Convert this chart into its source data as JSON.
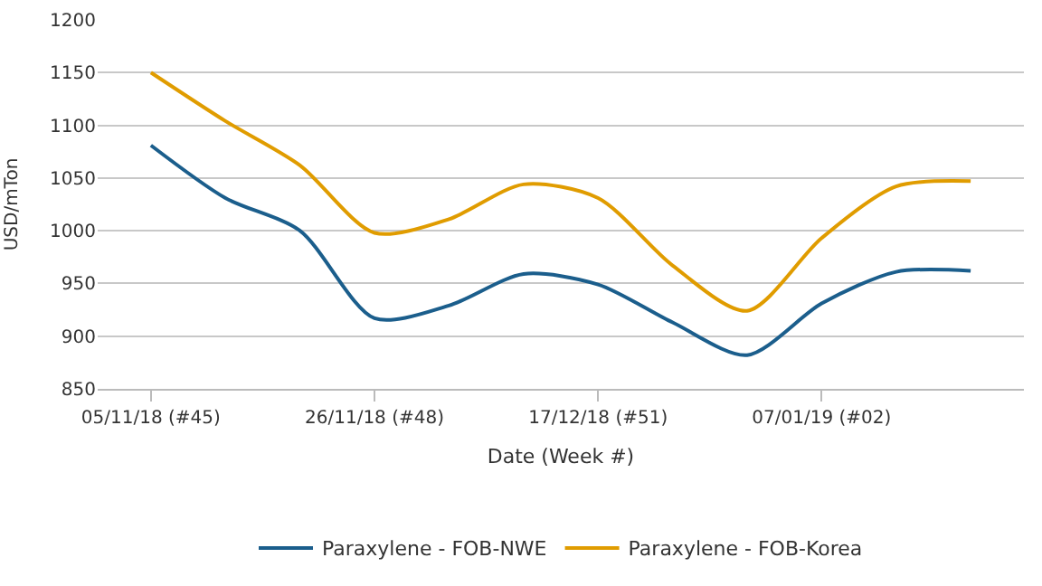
{
  "chart_data": {
    "type": "line",
    "xlabel": "Date (Week #)",
    "ylabel": "USD/mTon",
    "x": [
      "2018-11-05",
      "2018-11-12",
      "2018-11-19",
      "2018-11-26",
      "2018-12-03",
      "2018-12-10",
      "2018-12-17",
      "2018-12-24",
      "2018-12-31",
      "2019-01-07",
      "2019-01-14",
      "2019-01-21"
    ],
    "series": [
      {
        "name": "Paraxylene - FOB-NWE",
        "color": "#1b5e8c",
        "values": [
          1081,
          1031,
          1000,
          917,
          929,
          959,
          949,
          913,
          882,
          931,
          961,
          962
        ]
      },
      {
        "name": "Paraxylene - FOB-Korea",
        "color": "#e09c00",
        "values": [
          1150,
          1104,
          1062,
          998,
          1011,
          1044,
          1031,
          967,
          924,
          993,
          1042,
          1047
        ]
      }
    ],
    "xlim": [
      "2018-10-31",
      "2019-01-26"
    ],
    "xticks": [
      {
        "value": "2018-11-05",
        "label": "05/11/18 (#45)"
      },
      {
        "value": "2018-11-26",
        "label": "26/11/18 (#48)"
      },
      {
        "value": "2018-12-17",
        "label": "17/12/18 (#51)"
      },
      {
        "value": "2019-01-07",
        "label": "07/01/19 (#02)"
      }
    ],
    "ylim": [
      850,
      1200
    ],
    "yticks": [
      850,
      900,
      950,
      1000,
      1050,
      1100,
      1150,
      1200
    ],
    "grid": "y",
    "legend": "bottom",
    "marker": "none",
    "line_style": "solid"
  }
}
